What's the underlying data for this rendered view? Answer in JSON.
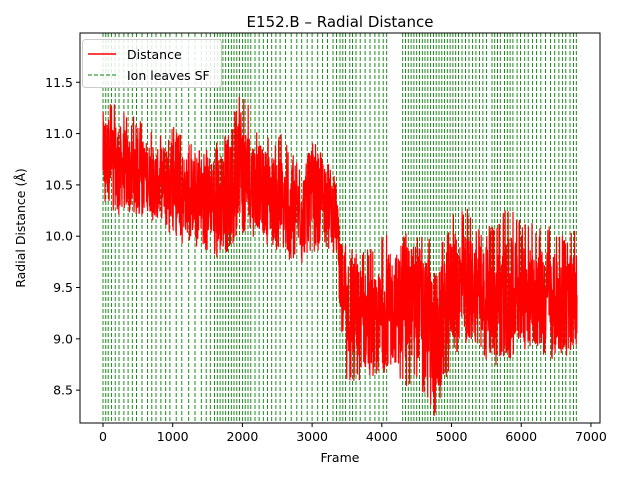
{
  "chart_data": {
    "type": "line",
    "title": "E152.B – Radial Distance",
    "xlabel": "Frame",
    "ylabel": "Radial Distance (Å)",
    "xlim": [
      -330,
      7130
    ],
    "ylim": [
      8.18,
      11.98
    ],
    "xticks": [
      0,
      1000,
      2000,
      3000,
      4000,
      5000,
      6000,
      7000
    ],
    "xtick_labels": [
      "0",
      "1000",
      "2000",
      "3000",
      "4000",
      "5000",
      "6000",
      "7000"
    ],
    "yticks": [
      8.5,
      9.0,
      9.5,
      10.0,
      10.5,
      11.0,
      11.5
    ],
    "ytick_labels": [
      "8.5",
      "9.0",
      "9.5",
      "10.0",
      "10.5",
      "11.0",
      "11.5"
    ],
    "grid": false,
    "legend_position": "top-left",
    "series": [
      {
        "name": "Distance",
        "color": "#ff0000",
        "x": [
          0,
          200,
          400,
          600,
          800,
          1000,
          1200,
          1400,
          1600,
          1800,
          1950,
          2000,
          2200,
          2400,
          2600,
          2800,
          3000,
          3200,
          3350,
          3400,
          3500,
          3700,
          3900,
          4100,
          4300,
          4500,
          4700,
          4800,
          4900,
          5000,
          5200,
          5400,
          5600,
          5800,
          6000,
          6200,
          6400,
          6600,
          6800
        ],
        "values": [
          10.8,
          10.7,
          10.6,
          10.6,
          10.5,
          10.6,
          10.4,
          10.4,
          10.4,
          10.3,
          10.9,
          10.6,
          10.5,
          10.4,
          10.3,
          10.2,
          10.4,
          10.4,
          10.2,
          9.6,
          9.4,
          9.2,
          9.1,
          9.3,
          9.3,
          9.4,
          9.1,
          9.0,
          9.2,
          9.5,
          9.5,
          9.5,
          9.3,
          9.4,
          9.5,
          9.4,
          9.4,
          9.3,
          9.4
        ],
        "band_top": [
          11.4,
          11.3,
          11.2,
          11.1,
          11.0,
          11.1,
          10.9,
          10.9,
          10.9,
          11.0,
          11.8,
          11.4,
          11.1,
          11.0,
          11.0,
          10.7,
          10.9,
          10.9,
          10.6,
          10.1,
          10.0,
          9.9,
          9.9,
          10.1,
          10.0,
          10.1,
          10.0,
          9.9,
          10.0,
          10.2,
          10.3,
          10.1,
          10.1,
          10.3,
          10.2,
          10.1,
          10.1,
          10.0,
          10.1
        ],
        "band_bottom": [
          10.3,
          10.2,
          10.2,
          10.2,
          10.1,
          10.0,
          9.9,
          9.9,
          9.8,
          9.7,
          10.1,
          10.0,
          10.0,
          9.9,
          9.8,
          9.7,
          9.8,
          9.9,
          9.8,
          9.2,
          8.5,
          8.6,
          8.6,
          8.7,
          8.5,
          8.6,
          8.3,
          8.2,
          8.5,
          8.8,
          8.9,
          8.9,
          8.7,
          8.8,
          8.8,
          8.9,
          8.8,
          8.8,
          8.9
        ]
      },
      {
        "name": "Ion leaves SF",
        "color": "#008000",
        "style": "dashed-vertical",
        "x": [
          0,
          40,
          75,
          120,
          175,
          230,
          300,
          360,
          420,
          480,
          560,
          640,
          700,
          760,
          830,
          900,
          960,
          1050,
          1130,
          1230,
          1320,
          1410,
          1480,
          1540,
          1600,
          1640,
          1680,
          1720,
          1760,
          1800,
          1840,
          1880,
          1920,
          1960,
          2000,
          2040,
          2080,
          2120,
          2180,
          2240,
          2300,
          2360,
          2420,
          2480,
          2540,
          2620,
          2700,
          2780,
          2850,
          2930,
          3000,
          3080,
          3150,
          3220,
          3300,
          3350,
          3400,
          3440,
          3480,
          3540,
          3580,
          3630,
          3690,
          3760,
          3830,
          3900,
          3960,
          4020,
          4070,
          4300,
          4340,
          4380,
          4420,
          4460,
          4500,
          4540,
          4580,
          4620,
          4660,
          4700,
          4740,
          4780,
          4820,
          4860,
          4900,
          4940,
          4980,
          5020,
          5060,
          5100,
          5150,
          5200,
          5250,
          5300,
          5350,
          5400,
          5450,
          5500,
          5580,
          5620,
          5660,
          5700,
          5760,
          5800,
          5840,
          5880,
          5940,
          5990,
          6050,
          6100,
          6160,
          6220,
          6280,
          6350,
          6420,
          6480,
          6540,
          6590,
          6640,
          6700,
          6750,
          6790
        ]
      }
    ]
  }
}
